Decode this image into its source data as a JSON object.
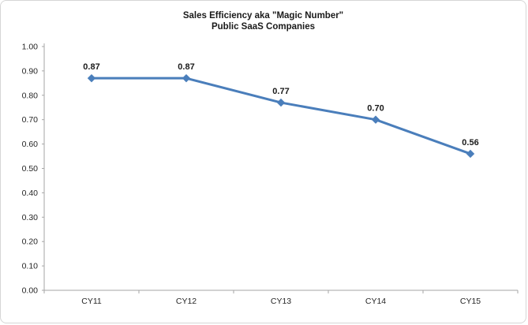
{
  "chart": {
    "title": "Sales Efficiency aka \"Magic Number\"",
    "subtitle": "Public SaaS Companies"
  },
  "chart_data": {
    "type": "line",
    "categories": [
      "CY11",
      "CY12",
      "CY13",
      "CY14",
      "CY15"
    ],
    "values": [
      0.87,
      0.87,
      0.77,
      0.7,
      0.56
    ],
    "data_labels": [
      "0.87",
      "0.87",
      "0.77",
      "0.70",
      "0.56"
    ],
    "title": "Sales Efficiency aka \"Magic Number\"",
    "subtitle": "Public SaaS Companies",
    "xlabel": "",
    "ylabel": "",
    "ylim": [
      0.0,
      1.0
    ],
    "ytick_step": 0.1,
    "ytick_labels": [
      "0.00",
      "0.10",
      "0.20",
      "0.30",
      "0.40",
      "0.50",
      "0.60",
      "0.70",
      "0.80",
      "0.90",
      "1.00"
    ],
    "grid": false,
    "legend": false,
    "marker": "diamond",
    "line_color": "#4a7ebb",
    "axis_color": "#a6a6a6",
    "label_color": "#1a1a1a",
    "tick_label_color": "#262626"
  }
}
